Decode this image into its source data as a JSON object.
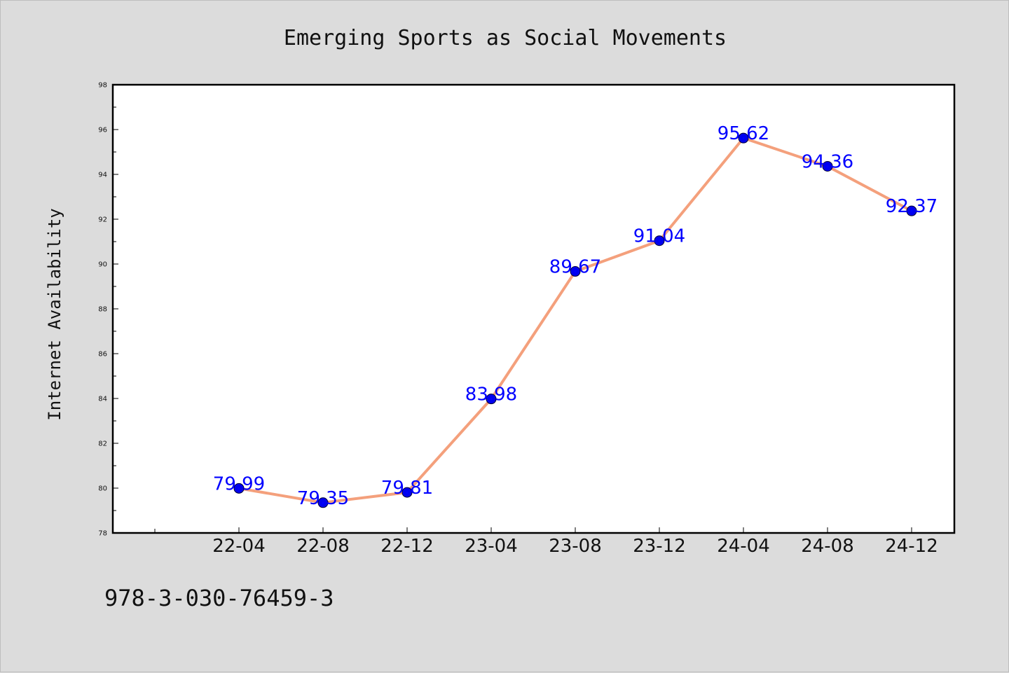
{
  "chart_data": {
    "type": "line",
    "title": "Emerging Sports as Social Movements",
    "ylabel": "Internet Availability",
    "xlabel": "",
    "categories": [
      "22-04",
      "22-08",
      "22-12",
      "23-04",
      "23-08",
      "23-12",
      "24-04",
      "24-08",
      "24-12"
    ],
    "series": [
      {
        "values": [
          79.99,
          79.35,
          79.81,
          83.98,
          89.67,
          91.04,
          95.62,
          94.36,
          92.37
        ]
      }
    ],
    "data_labels": [
      "79.99",
      "79.35",
      "79.81",
      "83.98",
      "89.67",
      "91.04",
      "95.62",
      "94.36",
      "92.37"
    ],
    "ylim": [
      78,
      98
    ],
    "yticks": [
      "78",
      "80",
      "82",
      "84",
      "86",
      "88",
      "90",
      "92",
      "94",
      "96",
      "98"
    ],
    "grid": false,
    "legend": "none",
    "colors": {
      "line": "#f4a07c",
      "marker": "#0000ee",
      "label": "#0000ff",
      "figure_bg": "#dcdcdc",
      "plot_bg": "#ffffff"
    }
  },
  "footer": {
    "text": "978-3-030-76459-3"
  }
}
